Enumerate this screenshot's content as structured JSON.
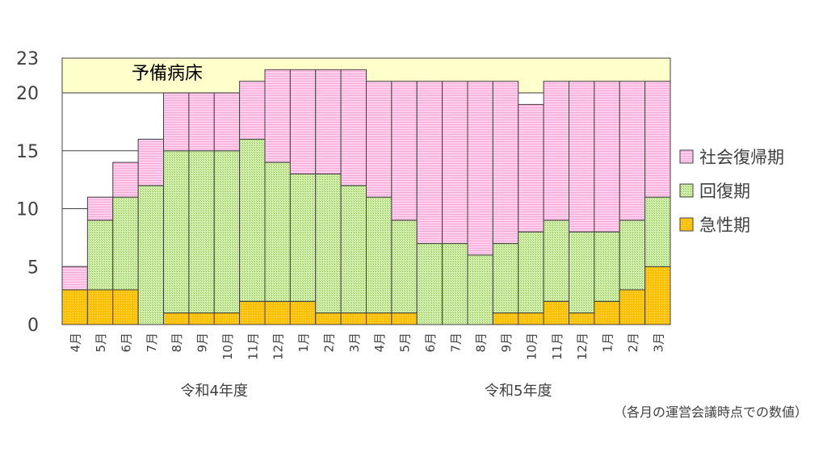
{
  "chart_data": {
    "type": "bar",
    "stacked": true,
    "ylim": [
      0,
      23
    ],
    "yticks": [
      "0",
      "5",
      "10",
      "15",
      "20",
      "23"
    ],
    "x_labels": [
      "4月",
      "5月",
      "6月",
      "7月",
      "8月",
      "9月",
      "10月",
      "11月",
      "12月",
      "1月",
      "2月",
      "3月",
      "4月",
      "5月",
      "6月",
      "7月",
      "8月",
      "9月",
      "10月",
      "11月",
      "12月",
      "1月",
      "2月",
      "3月"
    ],
    "groups": [
      {
        "label": "令和4年度",
        "start": 0,
        "end": 11
      },
      {
        "label": "令和5年度",
        "start": 12,
        "end": 23
      }
    ],
    "reserve_band": {
      "label": "予備病床",
      "from": 20,
      "to": 23
    },
    "series": [
      {
        "name": "急性期",
        "color": "#FFC000",
        "values": [
          3,
          3,
          3,
          0,
          1,
          1,
          1,
          2,
          2,
          2,
          1,
          1,
          1,
          1,
          0,
          0,
          0,
          1,
          1,
          2,
          1,
          2,
          3,
          5
        ]
      },
      {
        "name": "回復期",
        "color": "#C4E59A",
        "values": [
          0,
          6,
          8,
          12,
          14,
          14,
          14,
          14,
          12,
          11,
          12,
          11,
          10,
          8,
          7,
          7,
          6,
          6,
          7,
          7,
          7,
          6,
          6,
          6
        ]
      },
      {
        "name": "社会復帰期",
        "color": "#FFC4E8",
        "values": [
          2,
          2,
          3,
          4,
          5,
          5,
          5,
          5,
          8,
          9,
          9,
          10,
          10,
          12,
          14,
          14,
          15,
          14,
          11,
          12,
          13,
          13,
          12,
          10
        ]
      }
    ],
    "legend": {
      "placement": "right"
    },
    "grid": true
  },
  "note": "（各月の運営会議時点での数値）"
}
